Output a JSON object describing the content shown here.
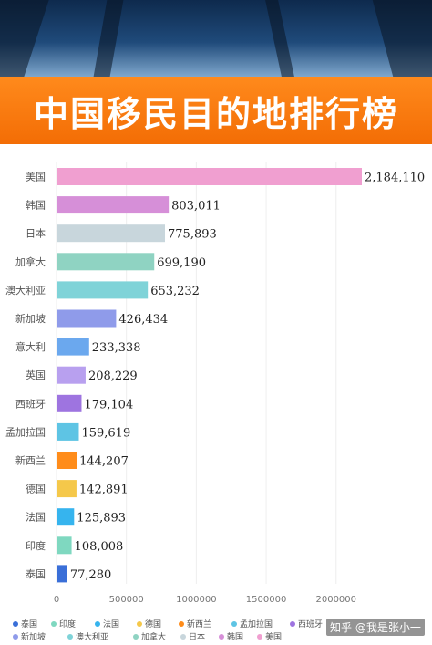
{
  "header": {
    "title": "中国移民目的地排行榜"
  },
  "watermark": "知乎 @我是张小一",
  "chart_data": {
    "type": "bar",
    "orientation": "horizontal",
    "title": "中国移民目的地排行榜",
    "categories": [
      "美国",
      "韩国",
      "日本",
      "加拿大",
      "澳大利亚",
      "新加坡",
      "意大利",
      "英国",
      "西班牙",
      "孟加拉国",
      "新西兰",
      "德国",
      "法国",
      "印度",
      "泰国"
    ],
    "values": [
      2184110,
      803011,
      775893,
      699190,
      653232,
      426434,
      233338,
      208229,
      179104,
      159619,
      144207,
      142891,
      125893,
      108008,
      77280
    ],
    "value_labels": [
      "2,184,110",
      "803,011",
      "775,893",
      "699,190",
      "653,232",
      "426,434",
      "233,338",
      "208,229",
      "179,104",
      "159,619",
      "144,207",
      "142,891",
      "125,893",
      "108,008",
      "77,280"
    ],
    "colors": [
      "#f09fd0",
      "#d68fd8",
      "#c8d6dc",
      "#8fd3c2",
      "#7fd3d8",
      "#8f9bea",
      "#6ba8ee",
      "#b8a0ef",
      "#9e74e0",
      "#5ec4e4",
      "#ff8c1a",
      "#f5c84a",
      "#36b4ee",
      "#7fd8c0",
      "#3a6fd8"
    ],
    "xlim": [
      0,
      2400000
    ],
    "xticks": [
      "0",
      "500000",
      "1000000",
      "1500000",
      "2000000"
    ],
    "xtick_values": [
      0,
      500000,
      1000000,
      1500000,
      2000000
    ],
    "grid": true,
    "legend": {
      "placement": "bottom",
      "rows": [
        [
          {
            "label": "泰国",
            "color": "#3a6fd8"
          },
          {
            "label": "印度",
            "color": "#7fd8c0"
          },
          {
            "label": "法国",
            "color": "#36b4ee"
          },
          {
            "label": "德国",
            "color": "#f5c84a"
          },
          {
            "label": "新西兰",
            "color": "#ff8c1a"
          },
          {
            "label": "孟加拉国",
            "color": "#5ec4e4"
          },
          {
            "label": "西班牙",
            "color": "#9e74e0"
          }
        ],
        [
          {
            "label": "新加坡",
            "color": "#8f9bea"
          },
          {
            "label": "澳大利亚",
            "color": "#7fd3d8"
          },
          {
            "label": "加拿大",
            "color": "#8fd3c2"
          },
          {
            "label": "日本",
            "color": "#c8d6dc"
          },
          {
            "label": "韩国",
            "color": "#d68fd8"
          },
          {
            "label": "美国",
            "color": "#f09fd0"
          }
        ]
      ]
    }
  }
}
